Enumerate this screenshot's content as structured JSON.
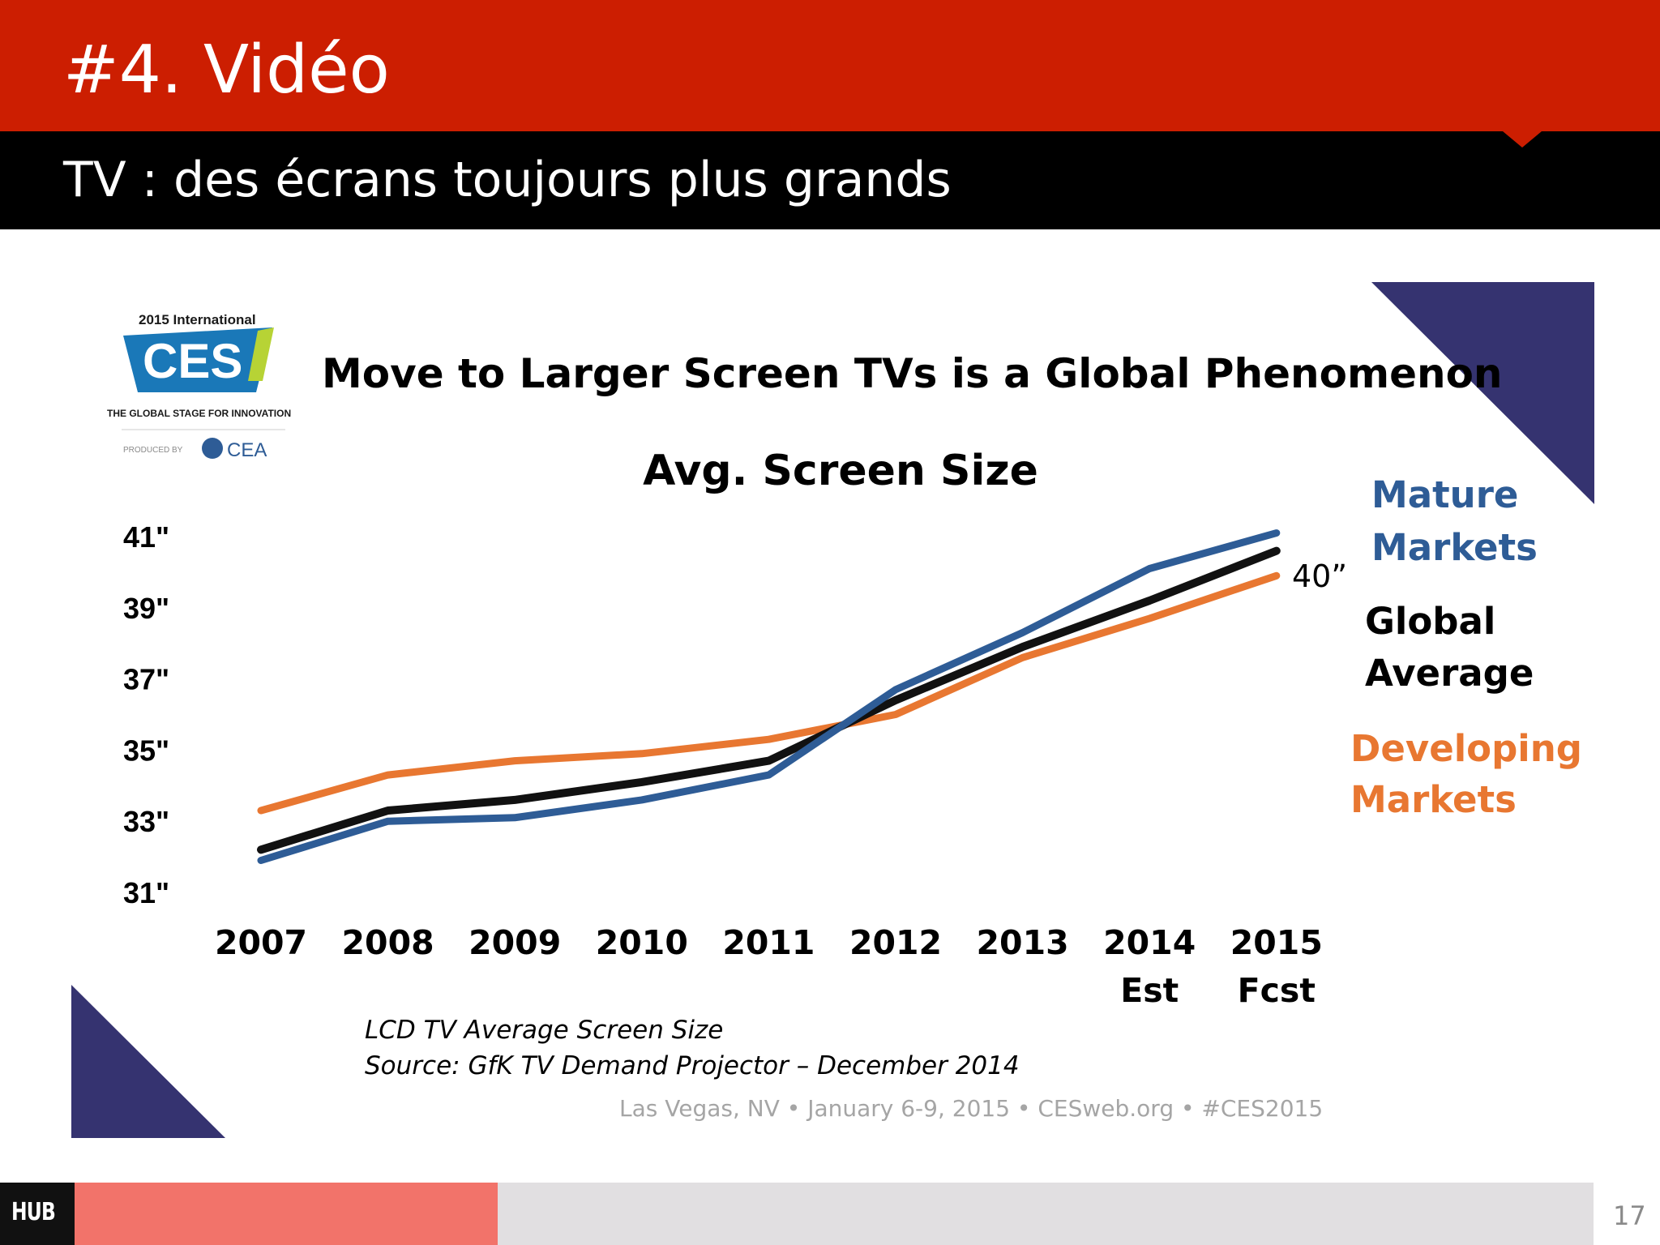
{
  "slide": {
    "title": "#4. Vidéo",
    "subtitle": "TV : des écrans toujours plus grands",
    "page_number": "17",
    "logo_text": "HUB",
    "colors": {
      "header": "#cc1e01",
      "subbar": "#000000",
      "footer_accent": "#f2736a",
      "footer": "#e1dfe1"
    }
  },
  "ces_logo": {
    "year_line": "2015 International",
    "mark": "CES",
    "tagline": "THE GLOBAL STAGE FOR INNOVATION",
    "produced_by": "PRODUCED BY",
    "producer": "CEA"
  },
  "chart_data": {
    "type": "line",
    "title": "Move to Larger Screen TVs is a Global Phenomenon",
    "subtitle": "Avg. Screen Size",
    "categories": [
      "2007",
      "2008",
      "2009",
      "2010",
      "2011",
      "2012",
      "2013",
      "2014",
      "2015"
    ],
    "category_sublabels": [
      "",
      "",
      "",
      "",
      "",
      "",
      "",
      "Est",
      "Fcst"
    ],
    "y_tick_labels": [
      "41\"",
      "39\"",
      "37\"",
      "35\"",
      "33\"",
      "31\""
    ],
    "y_ticks": [
      41,
      39,
      37,
      35,
      33,
      31
    ],
    "ylim": [
      31,
      41
    ],
    "grid": false,
    "series": [
      {
        "name": "Developing Markets",
        "legend": [
          "Developing",
          "Markets"
        ],
        "color": "#e87731",
        "values": [
          33.3,
          34.3,
          34.7,
          34.9,
          35.3,
          36.0,
          37.6,
          38.7,
          39.9
        ]
      },
      {
        "name": "Global Average",
        "legend": [
          "Global",
          "Average"
        ],
        "color": "#111111",
        "values": [
          32.2,
          33.3,
          33.6,
          34.1,
          34.7,
          36.4,
          37.9,
          39.2,
          40.6
        ]
      },
      {
        "name": "Mature Markets",
        "legend": [
          "Mature",
          "Markets"
        ],
        "color": "#2e5c96",
        "values": [
          31.9,
          33.0,
          33.1,
          33.6,
          34.3,
          36.7,
          38.3,
          40.1,
          41.1
        ]
      }
    ],
    "annotation": "40”",
    "source_lines": [
      "LCD TV Average  Screen Size",
      "Source: GfK TV Demand Projector –  December 2014"
    ],
    "event_line": "Las Vegas, NV  •  January 6-9, 2015  •  CESweb.org  •  #CES2015"
  }
}
